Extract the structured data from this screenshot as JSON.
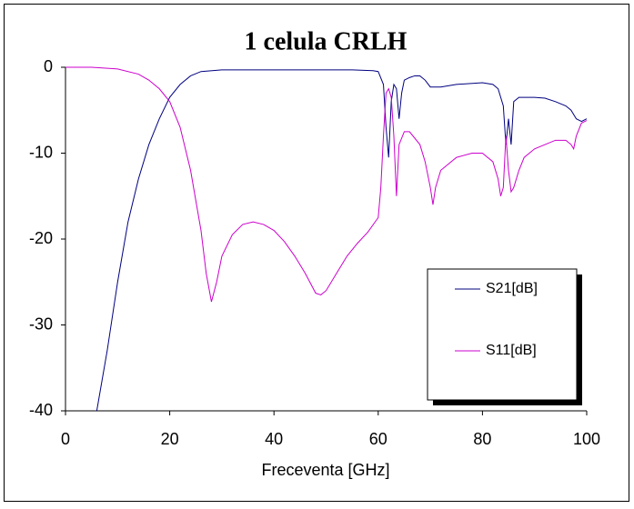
{
  "chart_data": {
    "type": "line",
    "title": "1 celula CRLH",
    "x_label": "Freceventa [GHz]",
    "xlim": [
      0,
      100
    ],
    "xticks": [
      0,
      20,
      40,
      60,
      80,
      100
    ],
    "ylim": [
      -40,
      0
    ],
    "yticks": [
      0,
      -10,
      -20,
      -30,
      -40
    ],
    "grid": false,
    "legend": "lower right",
    "series": [
      {
        "name": "S21[dB]",
        "color": "#000080",
        "x": [
          6,
          8,
          10,
          12,
          14,
          16,
          18,
          20,
          22,
          24,
          26,
          30,
          40,
          50,
          55,
          59,
          60,
          61,
          61.5,
          62,
          62.5,
          63,
          63.5,
          64,
          64.5,
          65,
          66,
          67,
          68,
          69,
          70,
          72,
          75,
          80,
          82,
          83,
          84,
          84.5,
          85,
          85.5,
          86,
          87,
          88,
          90,
          92,
          94,
          96,
          97,
          98,
          99,
          100
        ],
        "values": [
          -40,
          -33,
          -25,
          -18,
          -13,
          -9,
          -6,
          -3.5,
          -2,
          -1,
          -0.5,
          -0.3,
          -0.3,
          -0.3,
          -0.3,
          -0.4,
          -0.5,
          -2,
          -7,
          -10.5,
          -4,
          -2,
          -2.5,
          -6,
          -3,
          -1.5,
          -1.2,
          -1,
          -1,
          -1.5,
          -2.3,
          -2.3,
          -2,
          -1.8,
          -2,
          -2.5,
          -4.5,
          -9,
          -6,
          -9,
          -4,
          -3.5,
          -3.5,
          -3.5,
          -3.6,
          -4,
          -4.5,
          -5,
          -6,
          -6.3,
          -6
        ]
      },
      {
        "name": "S11[dB]",
        "color": "#cc00cc",
        "x": [
          0,
          5,
          10,
          14,
          16,
          18,
          20,
          22,
          24,
          26,
          27,
          28,
          29,
          30,
          32,
          34,
          36,
          38,
          40,
          42,
          44,
          46,
          48,
          49,
          50,
          52,
          54,
          56,
          58,
          60,
          60.5,
          61,
          61.5,
          62,
          62.5,
          63,
          63.5,
          64,
          65,
          66,
          68,
          69,
          70,
          70.5,
          71,
          72,
          75,
          78,
          80,
          82,
          83,
          83.5,
          84,
          84.5,
          85,
          85.5,
          86,
          87,
          88,
          90,
          92,
          94,
          96,
          97,
          97.5,
          98,
          99,
          100
        ],
        "values": [
          0,
          0,
          -0.2,
          -0.8,
          -1.5,
          -2.5,
          -4,
          -7,
          -12,
          -19,
          -24,
          -27.3,
          -25,
          -22,
          -19.5,
          -18.3,
          -18,
          -18.3,
          -19,
          -20.3,
          -22,
          -24,
          -26.3,
          -26.5,
          -26,
          -24,
          -22,
          -20.5,
          -19.2,
          -17.5,
          -14,
          -8,
          -3,
          -2.5,
          -3.5,
          -8,
          -15,
          -9,
          -7.5,
          -7.5,
          -9,
          -11,
          -14,
          -16,
          -14,
          -12,
          -10.5,
          -10,
          -10,
          -11,
          -13,
          -15,
          -14,
          -8,
          -12,
          -14.5,
          -14,
          -12,
          -10.5,
          -9.5,
          -9,
          -8.5,
          -8.5,
          -9,
          -9.5,
          -8,
          -6.5,
          -6.2
        ]
      }
    ]
  }
}
